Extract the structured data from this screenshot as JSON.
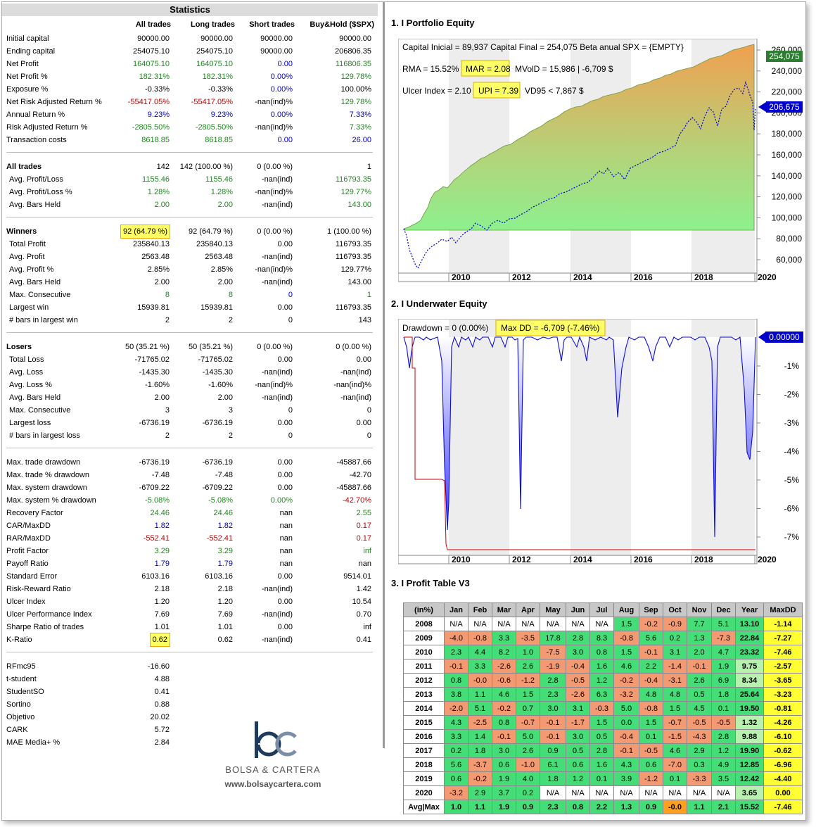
{
  "stats": {
    "title": "Statistics",
    "headers": [
      "All trades",
      "Long trades",
      "Short trades",
      "Buy&Hold ($SPX)"
    ],
    "groups": [
      [
        [
          "Initial capital",
          "90000.00",
          "90000.00",
          "90000.00",
          "90000.00"
        ],
        [
          "Ending capital",
          "254075.10",
          "254075.10",
          "90000.00",
          "206806.35"
        ],
        [
          "Net Profit",
          "164075.10",
          "164075.10",
          "0.00",
          "116806.35"
        ],
        [
          "Net Profit %",
          "182.31%",
          "182.31%",
          "0.00%",
          "129.78%"
        ],
        [
          "Exposure %",
          "-0.33%",
          "-0.33%",
          "0.00%",
          "100.00%"
        ],
        [
          "Net Risk Adjusted Return %",
          "-55417.05%",
          "-55417.05%",
          "-nan(ind)%",
          "129.78%"
        ],
        [
          "Annual Return %",
          "9.23%",
          "9.23%",
          "0.00%",
          "7.33%"
        ],
        [
          "Risk Adjusted Return %",
          "-2805.50%",
          "-2805.50%",
          "-nan(ind)%",
          "7.33%"
        ],
        [
          "Transaction costs",
          "8618.85",
          "8618.85",
          "0.00",
          "26.00"
        ]
      ],
      [
        [
          "All trades",
          "142",
          "142 (100.00 %)",
          "0 (0.00 %)",
          "1"
        ],
        [
          "Avg. Profit/Loss",
          "1155.46",
          "1155.46",
          "-nan(ind)",
          "116793.35"
        ],
        [
          "Avg. Profit/Loss %",
          "1.28%",
          "1.28%",
          "-nan(ind)%",
          "129.77%"
        ],
        [
          "Avg. Bars Held",
          "2.00",
          "2.00",
          "-nan(ind)",
          "143.00"
        ]
      ],
      [
        [
          "Winners",
          "92 (64.79 %)",
          "92 (64.79 %)",
          "0 (0.00 %)",
          "1 (100.00 %)"
        ],
        [
          "Total Profit",
          "235840.13",
          "235840.13",
          "0.00",
          "116793.35"
        ],
        [
          "Avg. Profit",
          "2563.48",
          "2563.48",
          "-nan(ind)",
          "116793.35"
        ],
        [
          "Avg. Profit %",
          "2.85%",
          "2.85%",
          "-nan(ind)%",
          "129.77%"
        ],
        [
          "Avg. Bars Held",
          "2.00",
          "2.00",
          "-nan(ind)",
          "143.00"
        ],
        [
          "Max. Consecutive",
          "8",
          "8",
          "0",
          "1"
        ],
        [
          "Largest win",
          "15939.81",
          "15939.81",
          "0.00",
          "116793.35"
        ],
        [
          "# bars in largest win",
          "2",
          "2",
          "0",
          "143"
        ]
      ],
      [
        [
          "Losers",
          "50 (35.21 %)",
          "50 (35.21 %)",
          "0 (0.00 %)",
          "0 (0.00 %)"
        ],
        [
          "Total Loss",
          "-71765.02",
          "-71765.02",
          "0.00",
          "0.00"
        ],
        [
          "Avg. Loss",
          "-1435.30",
          "-1435.30",
          "-nan(ind)",
          "-nan(ind)"
        ],
        [
          "Avg. Loss %",
          "-1.60%",
          "-1.60%",
          "-nan(ind)%",
          "-nan(ind)%"
        ],
        [
          "Avg. Bars Held",
          "2.00",
          "2.00",
          "-nan(ind)",
          "-nan(ind)"
        ],
        [
          "Max. Consecutive",
          "3",
          "3",
          "0",
          "0"
        ],
        [
          "Largest loss",
          "-6736.19",
          "-6736.19",
          "0.00",
          "0.00"
        ],
        [
          "# bars in largest loss",
          "2",
          "2",
          "0",
          "0"
        ]
      ],
      [
        [
          "Max. trade drawdown",
          "-6736.19",
          "-6736.19",
          "0.00",
          "-45887.66"
        ],
        [
          "Max. trade % drawdown",
          "-7.48",
          "-7.48",
          "0.00",
          "-42.70"
        ],
        [
          "Max. system drawdown",
          "-6709.22",
          "-6709.22",
          "0.00",
          "-45887.66"
        ],
        [
          "Max. system % drawdown",
          "-5.08%",
          "-5.08%",
          "0.00%",
          "-42.70%"
        ],
        [
          "Recovery Factor",
          "24.46",
          "24.46",
          "nan",
          "2.55"
        ],
        [
          "CAR/MaxDD",
          "1.82",
          "1.82",
          "nan",
          "0.17"
        ],
        [
          "RAR/MaxDD",
          "-552.41",
          "-552.41",
          "nan",
          "0.17"
        ],
        [
          "Profit Factor",
          "3.29",
          "3.29",
          "nan",
          "inf"
        ],
        [
          "Payoff Ratio",
          "1.79",
          "1.79",
          "nan",
          "nan"
        ],
        [
          "Standard Error",
          "6103.16",
          "6103.16",
          "0.00",
          "9514.01"
        ],
        [
          "Risk-Reward Ratio",
          "2.18",
          "2.18",
          "-nan(ind)",
          "1.42"
        ],
        [
          "Ulcer Index",
          "1.20",
          "1.20",
          "0.00",
          "10.54"
        ],
        [
          "Ulcer Performance Index",
          "7.69",
          "7.69",
          "-nan(ind)",
          "0.70"
        ],
        [
          "Sharpe Ratio of trades",
          "1.01",
          "1.01",
          "0.00",
          "inf"
        ],
        [
          "K-Ratio",
          "0.62",
          "0.62",
          "-nan(ind)",
          "0.41"
        ]
      ],
      [
        [
          "RFmc95",
          "-16.60"
        ],
        [
          "t-student",
          "4.88"
        ],
        [
          "StudentSO",
          "0.41"
        ],
        [
          "Sortino",
          "0.88"
        ],
        [
          "Objetivo",
          "20.02"
        ],
        [
          "CARK",
          "5.72"
        ],
        [
          "MAE Media+ %",
          "2.84"
        ]
      ]
    ]
  },
  "logo": {
    "mark": "bc",
    "name": "BOLSA & CARTERA",
    "url": "www.bolsaycartera.com"
  },
  "equity": {
    "section": "1. I Portfolio Equity",
    "info1": "Capital Inicial = 89,937  Capital Final = 254,075   Beta anual SPX = {EMPTY}",
    "rma": "RMA = 15.52%",
    "mar": "MAR = 2.08",
    "mvold": "MVolD = 15,986 | -6,709 $",
    "ulcer": "Ulcer Index = 2.10",
    "upi": "UPI = 7.39",
    "vd": "VD95 < 7,867 $",
    "label_top": "254,075",
    "label_bh": "206,675",
    "yticks": [
      "260,000",
      "240,000",
      "220,000",
      "200,000",
      "180,000",
      "160,000",
      "140,000",
      "120,000",
      "100,000",
      "80,000",
      "60,000"
    ],
    "xticks": [
      "2010",
      "2012",
      "2014",
      "2016",
      "2018",
      "2020"
    ]
  },
  "underwater": {
    "section": "2. I Underwater Equity",
    "dd": "Drawdown = 0 (0.00%)",
    "maxdd": "Max DD = -6,709 (-7.46%)",
    "label": "0.00000",
    "yticks": [
      "-1%",
      "-2%",
      "-3%",
      "-4%",
      "-5%",
      "-6%",
      "-7%"
    ],
    "xticks": [
      "2010",
      "2012",
      "2014",
      "2016",
      "2018",
      "2020"
    ]
  },
  "profit": {
    "section": "3. I Profit Table V3",
    "headers": [
      "(in%)",
      "Jan",
      "Feb",
      "Mar",
      "Apr",
      "May",
      "Jun",
      "Jul",
      "Aug",
      "Sep",
      "Oct",
      "Nov",
      "Dec",
      "Year",
      "MaxDD"
    ],
    "rows": [
      [
        "2008",
        "N/A",
        "N/A",
        "N/A",
        "N/A",
        "N/A",
        "N/A",
        "N/A",
        "1.5",
        "-0.2",
        "-0.9",
        "7.7",
        "5.1",
        "13.10",
        "-1.14"
      ],
      [
        "2009",
        "-4.0",
        "-0.8",
        "3.3",
        "-3.5",
        "17.8",
        "2.8",
        "8.3",
        "-0.8",
        "5.6",
        "0.2",
        "1.3",
        "-7.3",
        "22.84",
        "-7.27"
      ],
      [
        "2010",
        "2.3",
        "4.4",
        "8.2",
        "1.0",
        "-7.5",
        "3.0",
        "0.8",
        "1.5",
        "-0.1",
        "3.1",
        "2.0",
        "4.7",
        "23.32",
        "-7.46"
      ],
      [
        "2011",
        "-0.1",
        "3.3",
        "-2.6",
        "2.6",
        "-1.9",
        "-0.4",
        "1.6",
        "4.6",
        "2.2",
        "-1.4",
        "-0.1",
        "1.9",
        "9.75",
        "-2.57"
      ],
      [
        "2012",
        "0.8",
        "-0.0",
        "-0.6",
        "-1.2",
        "2.8",
        "-0.5",
        "1.2",
        "-0.2",
        "-0.4",
        "-3.1",
        "2.6",
        "6.9",
        "8.34",
        "-3.65"
      ],
      [
        "2013",
        "3.8",
        "1.1",
        "4.6",
        "1.5",
        "2.3",
        "-2.6",
        "6.3",
        "-3.2",
        "4.8",
        "4.8",
        "0.5",
        "1.8",
        "25.64",
        "-3.23"
      ],
      [
        "2014",
        "-2.0",
        "5.1",
        "-0.2",
        "0.7",
        "3.0",
        "3.1",
        "-0.3",
        "5.0",
        "-0.8",
        "1.5",
        "4.5",
        "0.1",
        "19.50",
        "-0.81"
      ],
      [
        "2015",
        "4.3",
        "-2.5",
        "0.8",
        "-0.7",
        "-0.1",
        "-1.7",
        "1.5",
        "0.0",
        "1.5",
        "-0.7",
        "-0.5",
        "-0.5",
        "1.32",
        "-4.26"
      ],
      [
        "2016",
        "3.3",
        "1.4",
        "-0.1",
        "5.0",
        "-0.1",
        "3.0",
        "0.5",
        "-0.4",
        "0.1",
        "-1.5",
        "-4.3",
        "2.8",
        "9.88",
        "-6.10"
      ],
      [
        "2017",
        "0.2",
        "1.8",
        "3.0",
        "2.6",
        "0.9",
        "0.5",
        "2.8",
        "-0.1",
        "-0.5",
        "4.6",
        "2.9",
        "1.2",
        "19.90",
        "-0.62"
      ],
      [
        "2018",
        "5.6",
        "-3.7",
        "0.6",
        "-1.0",
        "6.1",
        "0.6",
        "1.6",
        "4.3",
        "0.6",
        "-7.0",
        "0.3",
        "4.9",
        "12.85",
        "-6.96"
      ],
      [
        "2019",
        "0.6",
        "-0.2",
        "1.9",
        "4.0",
        "1.8",
        "1.2",
        "0.1",
        "3.9",
        "-1.2",
        "0.1",
        "-3.3",
        "3.5",
        "12.42",
        "-4.40"
      ],
      [
        "2020",
        "-3.2",
        "2.9",
        "3.7",
        "0.2",
        "N/A",
        "N/A",
        "N/A",
        "N/A",
        "N/A",
        "N/A",
        "N/A",
        "N/A",
        "3.65",
        "0.00"
      ],
      [
        "Avg|Max",
        "1.0",
        "1.1",
        "1.9",
        "0.9",
        "2.3",
        "0.8",
        "2.2",
        "1.3",
        "0.9",
        "-0.0",
        "1.1",
        "2.1",
        "15.52",
        "-7.46"
      ]
    ]
  },
  "colors": {
    "green": "#44dd77",
    "red": "#f49a73",
    "yellow": "#ffff33"
  }
}
